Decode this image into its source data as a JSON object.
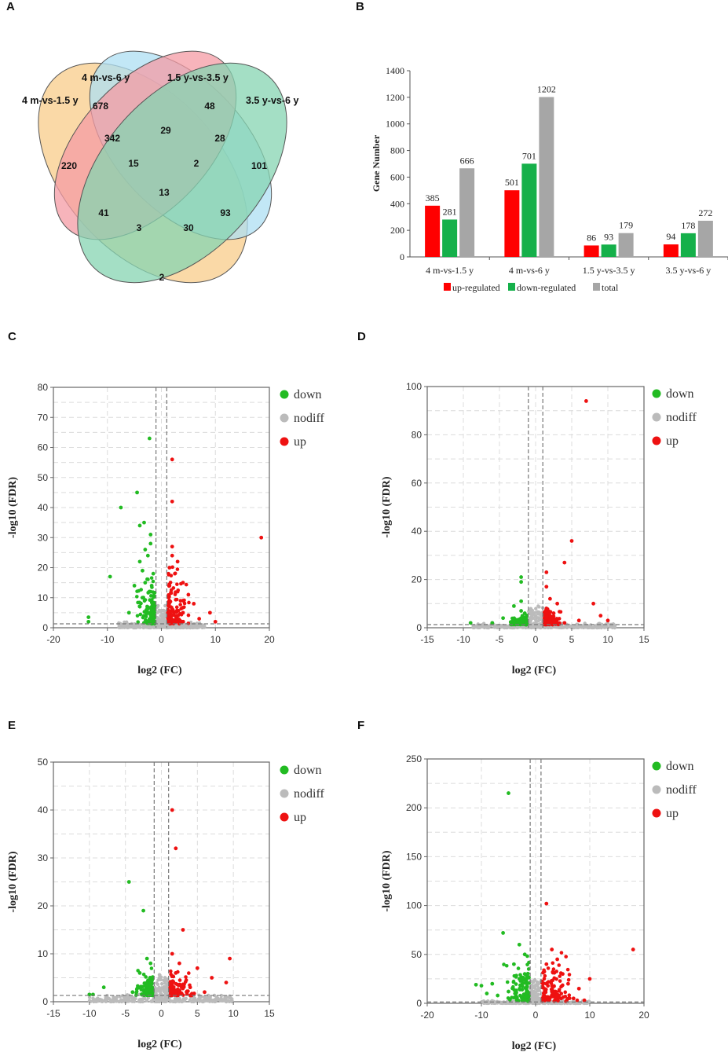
{
  "panels": {
    "a": "A",
    "b": "B",
    "c": "C",
    "d": "D",
    "e": "E",
    "f": "F"
  },
  "venn": {
    "set_labels": [
      "4 m-vs-1.5 y",
      "4 m-vs-6 y",
      "1.5 y-vs-3.5 y",
      "3.5 y-vs-6 y"
    ],
    "region_values": [
      "220",
      "678",
      "48",
      "101",
      "342",
      "29",
      "28",
      "15",
      "2",
      "13",
      "41",
      "93",
      "3",
      "30",
      "2"
    ],
    "colors": [
      "#f8cc8a",
      "#aedff3",
      "#f49ba4",
      "#86d4b2"
    ]
  },
  "chart_data": [
    {
      "type": "bar",
      "categories": [
        "4 m-vs-1.5 y",
        "4 m-vs-6 y",
        "1.5 y-vs-3.5 y",
        "3.5 y-vs-6 y"
      ],
      "series": [
        {
          "name": "up-regulated",
          "values": [
            385,
            501,
            86,
            94
          ],
          "color": "#ff0000"
        },
        {
          "name": "down-regulated",
          "values": [
            281,
            701,
            93,
            178
          ],
          "color": "#15b04a"
        },
        {
          "name": "total",
          "values": [
            666,
            1202,
            179,
            272
          ],
          "color": "#a6a6a6"
        }
      ],
      "ylabel": "Gene Number",
      "ylim": [
        0,
        1400
      ],
      "yticks": [
        0,
        200,
        400,
        600,
        800,
        1000,
        1200,
        1400
      ]
    },
    {
      "type": "scatter",
      "xlabel": "log2 (FC)",
      "ylabel": "-log10 (FDR)",
      "xlim": [
        -20,
        20
      ],
      "ylim": [
        0,
        80
      ],
      "xticks": [
        -20,
        -10,
        0,
        10,
        20
      ],
      "yticks": [
        0,
        10,
        20,
        30,
        40,
        50,
        60,
        70,
        80
      ],
      "legend": [
        "down",
        "nodiff",
        "up"
      ],
      "colors": {
        "down": "#22bb22",
        "nodiff": "#bbbbbb",
        "up": "#ee1111"
      },
      "threshold_x": [
        -1,
        1
      ],
      "threshold_y": 1.3,
      "down_points": [
        [
          -2.2,
          63
        ],
        [
          -4.5,
          45
        ],
        [
          -7.5,
          40
        ],
        [
          -3.2,
          35
        ],
        [
          -4,
          34
        ],
        [
          -2,
          31
        ],
        [
          -9.5,
          17
        ],
        [
          -13.5,
          3.5
        ],
        [
          -13.5,
          2
        ],
        [
          -4,
          22
        ],
        [
          -3.5,
          19
        ],
        [
          -2.5,
          24
        ],
        [
          -3,
          15
        ],
        [
          -5,
          14
        ],
        [
          -2,
          12
        ],
        [
          -3.5,
          10
        ],
        [
          -4,
          7
        ],
        [
          -6,
          5
        ],
        [
          -2.5,
          5
        ],
        [
          -1.5,
          8
        ],
        [
          -1.5,
          18
        ],
        [
          -2,
          28
        ],
        [
          -3,
          26
        ],
        [
          -1.8,
          14
        ]
      ],
      "up_points": [
        [
          2,
          56
        ],
        [
          2,
          42
        ],
        [
          18.5,
          30
        ],
        [
          2,
          24
        ],
        [
          3,
          22
        ],
        [
          2.5,
          18
        ],
        [
          4,
          15
        ],
        [
          1.5,
          14
        ],
        [
          3,
          12
        ],
        [
          5,
          11
        ],
        [
          4,
          9
        ],
        [
          6,
          8
        ],
        [
          9,
          5
        ],
        [
          7,
          3
        ],
        [
          1.5,
          9
        ],
        [
          2,
          6
        ],
        [
          3,
          4
        ],
        [
          1.5,
          20
        ],
        [
          2,
          27
        ],
        [
          4,
          5
        ],
        [
          10,
          2
        ]
      ],
      "up_spread": {
        "x": [
          1.2,
          6
        ],
        "y": [
          1.3,
          22
        ]
      },
      "down_spread": {
        "x": [
          -5,
          -1.2
        ],
        "y": [
          1.3,
          20
        ]
      },
      "nodiff_spread": {
        "x": [
          -8,
          8
        ],
        "y": [
          0,
          2
        ]
      }
    },
    {
      "type": "scatter",
      "xlabel": "log2 (FC)",
      "ylabel": "-log10 (FDR)",
      "xlim": [
        -15,
        15
      ],
      "ylim": [
        0,
        100
      ],
      "xticks": [
        -15,
        -10,
        -5,
        0,
        5,
        10,
        15
      ],
      "yticks": [
        0,
        20,
        40,
        60,
        80,
        100
      ],
      "legend": [
        "down",
        "nodiff",
        "up"
      ],
      "colors": {
        "down": "#22bb22",
        "nodiff": "#bbbbbb",
        "up": "#ee1111"
      },
      "threshold_x": [
        -1,
        1
      ],
      "threshold_y": 1.3,
      "down_points": [
        [
          -2,
          21
        ],
        [
          -2,
          19
        ],
        [
          -3,
          9
        ],
        [
          -2,
          7
        ],
        [
          -2,
          11
        ],
        [
          -1.5,
          6
        ],
        [
          -4.5,
          4
        ],
        [
          -6,
          2
        ],
        [
          -9,
          2
        ],
        [
          -2.5,
          3
        ]
      ],
      "up_points": [
        [
          7,
          94
        ],
        [
          5,
          36
        ],
        [
          4,
          27
        ],
        [
          1.5,
          23
        ],
        [
          1.5,
          17
        ],
        [
          2,
          12
        ],
        [
          3,
          10
        ],
        [
          8,
          10
        ],
        [
          2,
          5
        ],
        [
          9,
          5
        ],
        [
          6,
          3
        ],
        [
          10,
          3
        ],
        [
          1.5,
          8
        ],
        [
          2.5,
          6
        ],
        [
          4,
          2
        ]
      ],
      "up_spread": {
        "x": [
          1.2,
          4
        ],
        "y": [
          1.3,
          8
        ]
      },
      "down_spread": {
        "x": [
          -4,
          -1.2
        ],
        "y": [
          1.3,
          6
        ]
      },
      "nodiff_spread": {
        "x": [
          -9,
          11
        ],
        "y": [
          0,
          2
        ]
      }
    },
    {
      "type": "scatter",
      "xlabel": "log2 (FC)",
      "ylabel": "-log10 (FDR)",
      "xlim": [
        -15,
        15
      ],
      "ylim": [
        0,
        50
      ],
      "xticks": [
        -15,
        -10,
        -5,
        0,
        5,
        10,
        15
      ],
      "yticks": [
        0,
        10,
        20,
        30,
        40,
        50
      ],
      "legend": [
        "down",
        "nodiff",
        "up"
      ],
      "colors": {
        "down": "#22bb22",
        "nodiff": "#bbbbbb",
        "up": "#ee1111"
      },
      "threshold_x": [
        -1,
        1
      ],
      "threshold_y": 1.3,
      "down_points": [
        [
          -4.5,
          25
        ],
        [
          -2.5,
          19
        ],
        [
          -2,
          9
        ],
        [
          -1.5,
          8
        ],
        [
          -3,
          6
        ],
        [
          -2,
          4
        ],
        [
          -4,
          2
        ],
        [
          -8,
          3
        ],
        [
          -10,
          1.5
        ],
        [
          -9.5,
          1.5
        ]
      ],
      "up_points": [
        [
          1.5,
          40
        ],
        [
          2,
          32
        ],
        [
          3,
          15
        ],
        [
          1.5,
          10
        ],
        [
          9.5,
          9
        ],
        [
          5,
          7
        ],
        [
          2,
          6
        ],
        [
          7,
          5
        ],
        [
          9,
          4
        ],
        [
          3,
          3
        ],
        [
          1.5,
          4
        ],
        [
          6,
          2
        ],
        [
          2.5,
          8
        ],
        [
          4,
          3
        ]
      ],
      "up_spread": {
        "x": [
          1.2,
          5
        ],
        "y": [
          1.3,
          7
        ]
      },
      "down_spread": {
        "x": [
          -4,
          -1.2
        ],
        "y": [
          1.3,
          8
        ]
      },
      "nodiff_spread": {
        "x": [
          -10,
          10
        ],
        "y": [
          0,
          1.6
        ]
      }
    },
    {
      "type": "scatter",
      "xlabel": "log2 (FC)",
      "ylabel": "-log10 (FDR)",
      "xlim": [
        -20,
        20
      ],
      "ylim": [
        0,
        250
      ],
      "xticks": [
        -20,
        -10,
        0,
        10,
        20
      ],
      "yticks": [
        0,
        50,
        100,
        150,
        200,
        250
      ],
      "legend": [
        "down",
        "nodiff",
        "up"
      ],
      "colors": {
        "down": "#22bb22",
        "nodiff": "#bbbbbb",
        "up": "#ee1111"
      },
      "threshold_x": [
        -1,
        1
      ],
      "threshold_y": 1.3,
      "down_points": [
        [
          -5,
          215
        ],
        [
          -6,
          72
        ],
        [
          -3,
          60
        ],
        [
          -4,
          40
        ],
        [
          -2,
          50
        ],
        [
          -8,
          20
        ],
        [
          -10,
          18
        ],
        [
          -11,
          19
        ],
        [
          -5,
          12
        ],
        [
          -7,
          8
        ],
        [
          -2,
          30
        ],
        [
          -3,
          25
        ],
        [
          -9,
          10
        ]
      ],
      "up_points": [
        [
          2,
          102
        ],
        [
          18,
          55
        ],
        [
          10,
          25
        ],
        [
          3,
          55
        ],
        [
          4,
          45
        ],
        [
          2,
          40
        ],
        [
          5,
          30
        ],
        [
          6,
          20
        ],
        [
          8,
          15
        ],
        [
          3,
          12
        ],
        [
          7,
          5
        ],
        [
          9,
          3
        ],
        [
          2,
          20
        ],
        [
          1.5,
          10
        ],
        [
          4,
          8
        ]
      ],
      "up_spread": {
        "x": [
          1.2,
          8
        ],
        "y": [
          2,
          55
        ]
      },
      "down_spread": {
        "x": [
          -6,
          -1.2
        ],
        "y": [
          2,
          55
        ]
      },
      "nodiff_spread": {
        "x": [
          -10,
          10
        ],
        "y": [
          0,
          3
        ]
      }
    }
  ]
}
